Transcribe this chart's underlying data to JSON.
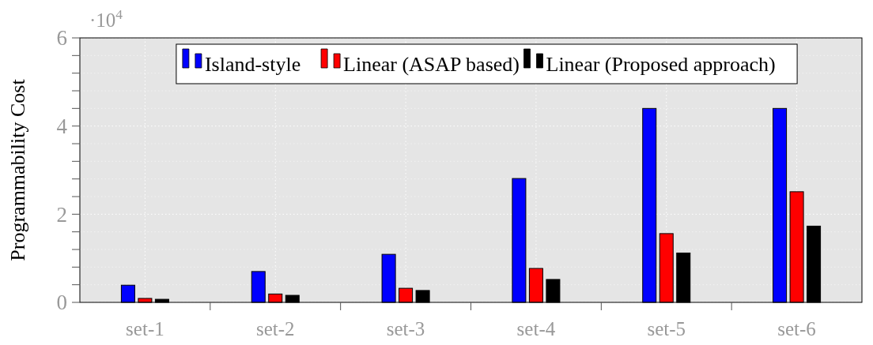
{
  "chart_data": {
    "type": "bar",
    "ylabel": "Programmability Cost",
    "annotations": [
      "·10$^{4}$"
    ],
    "categories": [
      "set-1",
      "set-2",
      "set-3",
      "set-4",
      "set-5",
      "set-6"
    ],
    "series": [
      {
        "name": "Island-style",
        "color": "#0000ff",
        "values": [
          0.39,
          0.7,
          1.09,
          2.81,
          4.4,
          4.4
        ]
      },
      {
        "name": "Linear (ASAP based)",
        "color": "#ff0000",
        "values": [
          0.09,
          0.19,
          0.32,
          0.77,
          1.56,
          2.51
        ]
      },
      {
        "name": "Linear (Proposed approach)",
        "color": "#000000",
        "values": [
          0.07,
          0.16,
          0.27,
          0.52,
          1.12,
          1.73
        ]
      }
    ],
    "ylim": [
      0,
      6
    ],
    "yticks": [
      0,
      {
        "value": 0.4,
        "label": null
      },
      {
        "value": 0.8,
        "label": null
      },
      {
        "value": 1.2,
        "label": null
      },
      {
        "value": 1.6,
        "label": null
      },
      2,
      {
        "value": 2.4,
        "label": null
      },
      {
        "value": 2.8,
        "label": null
      },
      {
        "value": 3.2,
        "label": null
      },
      {
        "value": 3.6,
        "label": null
      },
      4,
      {
        "value": 4.4,
        "label": null
      },
      {
        "value": 4.8,
        "label": null
      },
      {
        "value": 5.2,
        "label": null
      },
      {
        "value": 5.6,
        "label": null
      },
      6
    ],
    "grid": true,
    "legend": "top"
  }
}
